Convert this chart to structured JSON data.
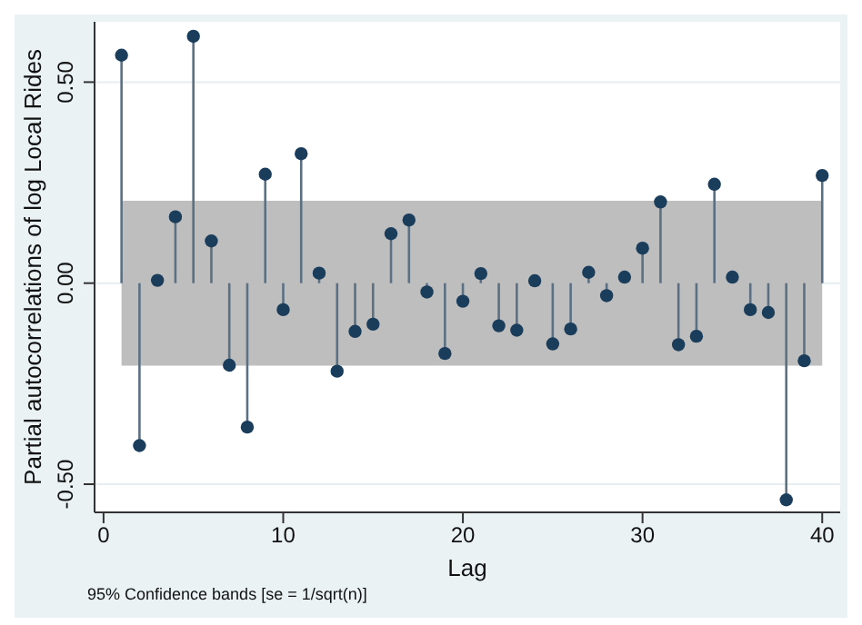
{
  "chart_data": {
    "type": "lollipop",
    "xlabel": "Lag",
    "ylabel": "Partial autocorrelations of log Local Rides",
    "annotations": [
      "95% Confidence bands [se = 1/sqrt(n)]"
    ],
    "x": [
      1,
      2,
      3,
      4,
      5,
      6,
      7,
      8,
      9,
      10,
      11,
      12,
      13,
      14,
      15,
      16,
      17,
      18,
      19,
      20,
      21,
      22,
      23,
      24,
      25,
      26,
      27,
      28,
      29,
      30,
      31,
      32,
      33,
      34,
      35,
      36,
      37,
      38,
      39,
      40
    ],
    "series": [
      {
        "color": "#1a3d5c",
        "values": [
          0.567,
          -0.404,
          0.007,
          0.165,
          0.614,
          0.105,
          -0.204,
          -0.358,
          0.271,
          -0.066,
          0.322,
          0.025,
          -0.219,
          -0.12,
          -0.102,
          0.123,
          0.157,
          -0.022,
          -0.175,
          -0.045,
          0.024,
          -0.106,
          -0.117,
          0.006,
          -0.151,
          -0.114,
          0.027,
          -0.031,
          0.015,
          0.087,
          0.202,
          -0.153,
          -0.132,
          0.246,
          0.015,
          -0.066,
          -0.073,
          -0.539,
          -0.193,
          0.268
        ]
      }
    ],
    "bands": [
      {
        "axis": "y",
        "from": -0.205,
        "to": 0.205,
        "color": "#bebebe"
      }
    ],
    "xlim": [
      -0.5,
      41
    ],
    "xticks": [
      0,
      10,
      20,
      30,
      40
    ],
    "ylim": [
      -0.57,
      0.65
    ],
    "yticks": [
      {
        "value": -0.5,
        "label": "-0.50"
      },
      {
        "value": 0,
        "label": "0.00"
      },
      {
        "value": 0.5,
        "label": "0.50"
      }
    ],
    "grid": "y",
    "marker": "circle"
  }
}
